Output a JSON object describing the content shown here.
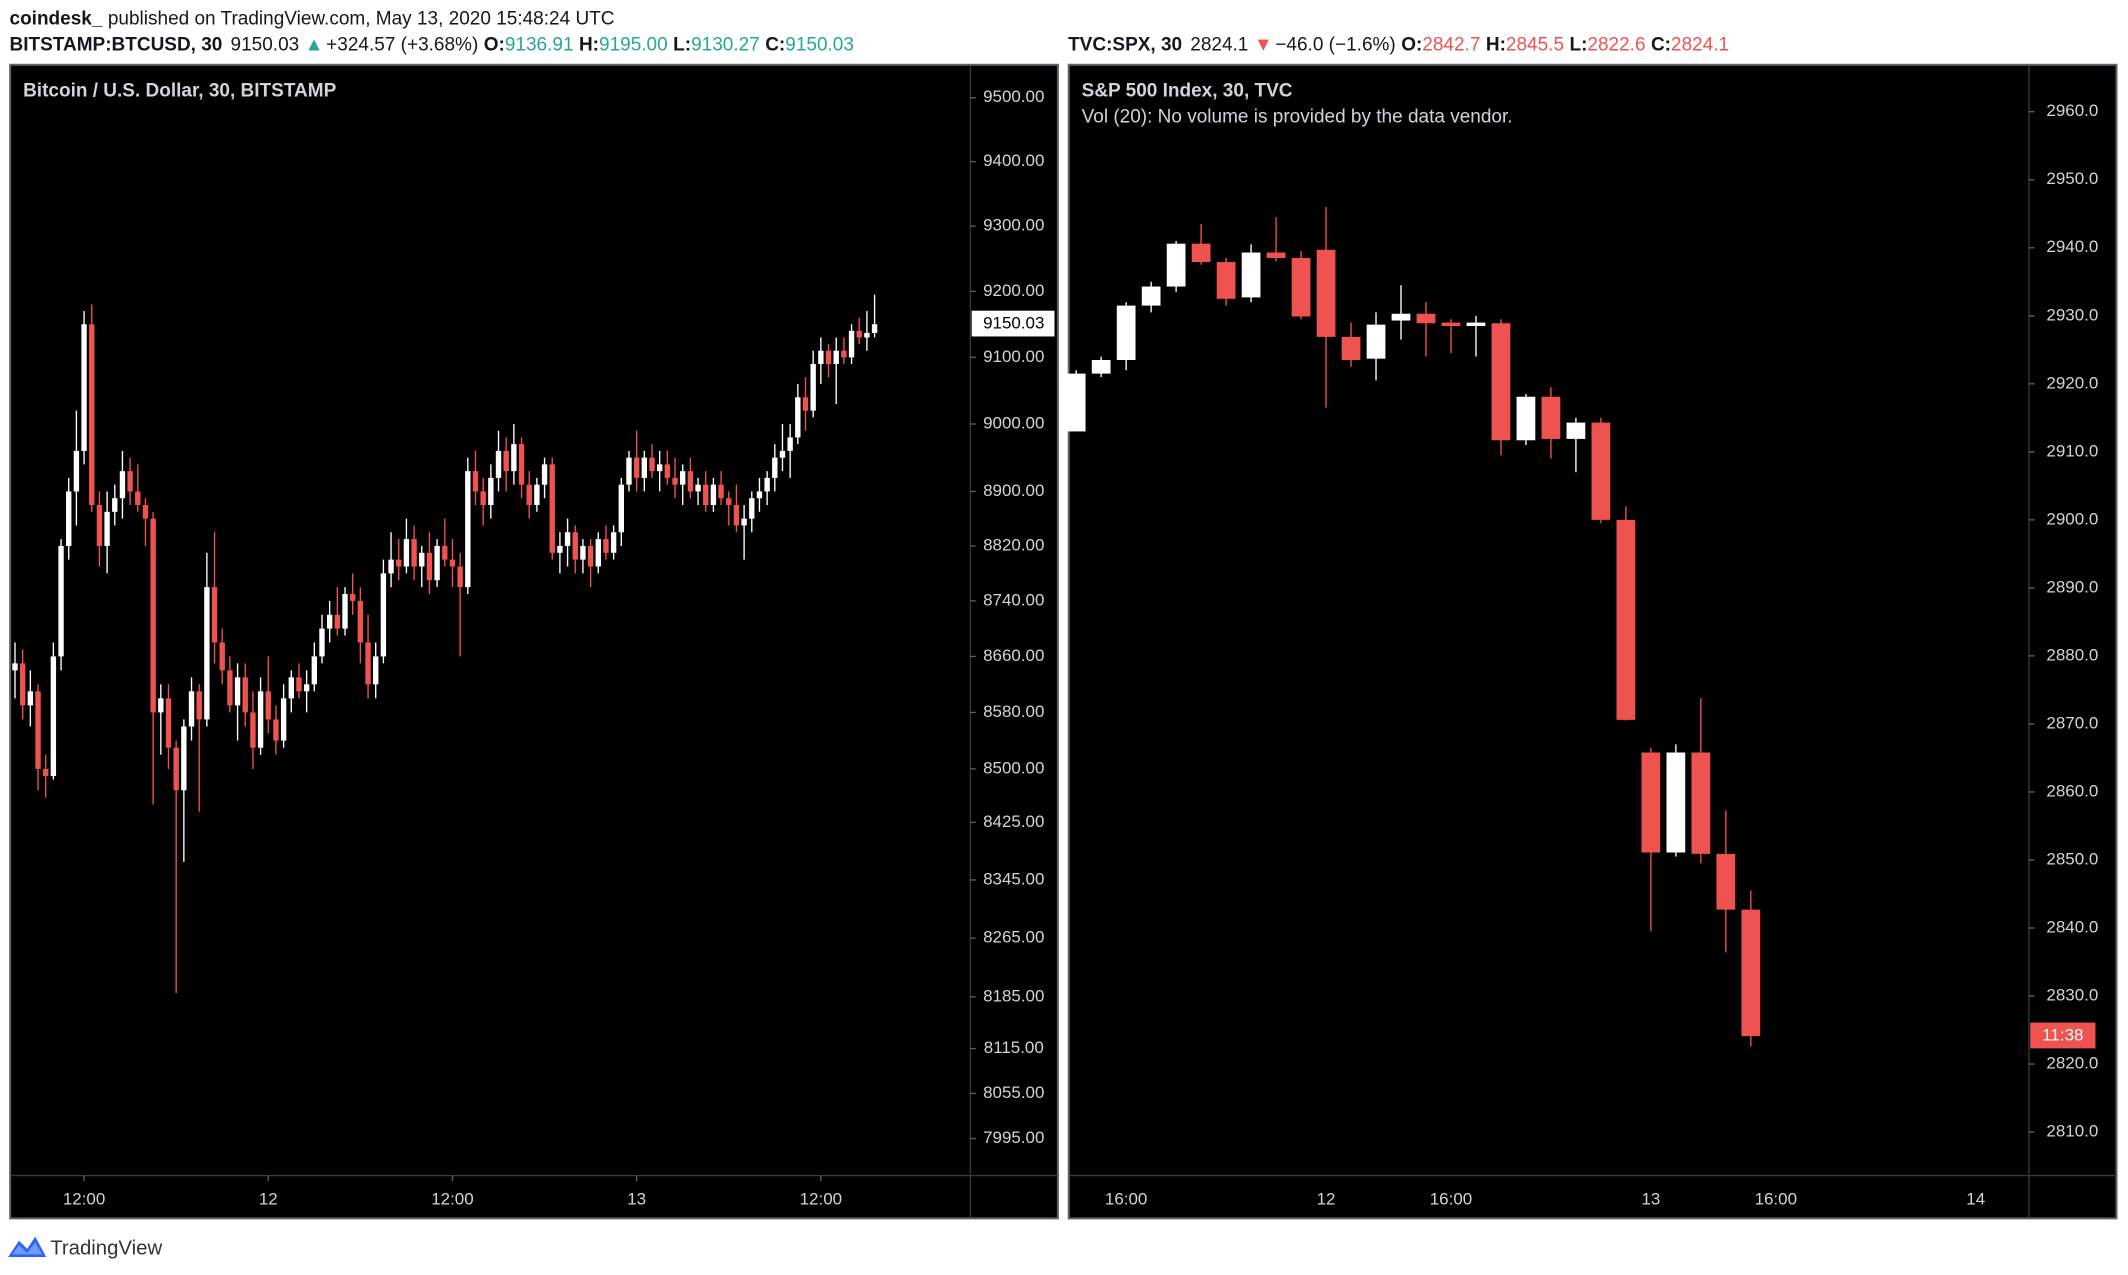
{
  "header": {
    "author": "coindesk_",
    "published": "published on TradingView.com, May 13, 2020 15:48:24 UTC"
  },
  "chart_data": [
    {
      "type": "candlestick",
      "symbol": "BITSTAMP:BTCUSD, 30",
      "title": "Bitcoin / U.S. Dollar, 30, BITSTAMP",
      "direction": "▲",
      "change": "+324.57 (+3.68%)",
      "ohlc_labels": [
        "O:",
        "H:",
        "L:",
        "C:"
      ],
      "last_bar_labels": [
        "9136.91",
        "9195.00",
        "9130.27",
        "9150.03"
      ],
      "up_color": "#ffffff",
      "down_color": "#ef5350",
      "header_color": "#26a69a",
      "log_scale": true,
      "x": [
        7.5,
        8,
        8.5,
        9,
        9.5,
        10,
        10.5,
        11,
        11.5,
        12,
        12.5,
        13,
        13.5,
        14,
        14.5,
        15,
        15.5,
        16,
        16.5,
        17,
        17.5,
        18,
        18.5,
        19,
        19.5,
        20,
        20.5,
        21,
        21.5,
        22,
        22.5,
        23,
        23.5,
        24,
        24.5,
        25,
        25.5,
        26,
        26.5,
        27,
        27.5,
        28,
        28.5,
        29,
        29.5,
        30,
        30.5,
        31,
        31.5,
        32,
        32.5,
        33,
        33.5,
        34,
        34.5,
        35,
        35.5,
        36,
        36.5,
        37,
        37.5,
        38,
        38.5,
        39,
        39.5,
        40,
        40.5,
        41,
        41.5,
        42,
        42.5,
        43,
        43.5,
        44,
        44.5,
        45,
        45.5,
        46,
        46.5,
        47,
        47.5,
        48,
        48.5,
        49,
        49.5,
        50,
        50.5,
        51,
        51.5,
        52,
        52.5,
        53,
        53.5,
        54,
        54.5,
        55,
        55.5,
        56,
        56.5,
        57,
        57.5,
        58,
        58.5,
        59,
        59.5,
        60,
        60.5,
        61,
        61.5,
        62,
        62.5,
        63,
        63.5
      ],
      "ohlc": [
        [
          8640,
          8680,
          8600,
          8650
        ],
        [
          8650,
          8670,
          8570,
          8590
        ],
        [
          8590,
          8640,
          8560,
          8610
        ],
        [
          8610,
          8620,
          8470,
          8500
        ],
        [
          8500,
          8520,
          8460,
          8490
        ],
        [
          8490,
          8680,
          8485,
          8660
        ],
        [
          8660,
          8830,
          8640,
          8820
        ],
        [
          8820,
          8920,
          8800,
          8900
        ],
        [
          8900,
          9020,
          8850,
          8960
        ],
        [
          8960,
          9170,
          8940,
          9150
        ],
        [
          9150,
          9180,
          8870,
          8880
        ],
        [
          8880,
          8900,
          8790,
          8820
        ],
        [
          8820,
          8900,
          8780,
          8870
        ],
        [
          8870,
          8910,
          8850,
          8890
        ],
        [
          8890,
          8960,
          8860,
          8930
        ],
        [
          8930,
          8950,
          8880,
          8900
        ],
        [
          8900,
          8940,
          8870,
          8880
        ],
        [
          8880,
          8890,
          8820,
          8860
        ],
        [
          8860,
          8870,
          8450,
          8580
        ],
        [
          8580,
          8620,
          8520,
          8600
        ],
        [
          8600,
          8620,
          8500,
          8530
        ],
        [
          8530,
          8540,
          8190,
          8470
        ],
        [
          8470,
          8570,
          8370,
          8560
        ],
        [
          8560,
          8630,
          8540,
          8610
        ],
        [
          8610,
          8620,
          8440,
          8570
        ],
        [
          8570,
          8810,
          8560,
          8760
        ],
        [
          8760,
          8840,
          8650,
          8680
        ],
        [
          8680,
          8700,
          8620,
          8640
        ],
        [
          8640,
          8660,
          8580,
          8590
        ],
        [
          8590,
          8650,
          8540,
          8630
        ],
        [
          8630,
          8650,
          8560,
          8580
        ],
        [
          8580,
          8610,
          8500,
          8530
        ],
        [
          8530,
          8630,
          8520,
          8610
        ],
        [
          8610,
          8660,
          8550,
          8570
        ],
        [
          8570,
          8590,
          8520,
          8540
        ],
        [
          8540,
          8620,
          8530,
          8600
        ],
        [
          8600,
          8640,
          8580,
          8630
        ],
        [
          8630,
          8650,
          8600,
          8610
        ],
        [
          8610,
          8640,
          8580,
          8620
        ],
        [
          8620,
          8680,
          8610,
          8660
        ],
        [
          8660,
          8720,
          8650,
          8700
        ],
        [
          8700,
          8740,
          8680,
          8720
        ],
        [
          8720,
          8760,
          8690,
          8700
        ],
        [
          8700,
          8760,
          8690,
          8750
        ],
        [
          8750,
          8780,
          8720,
          8740
        ],
        [
          8740,
          8760,
          8650,
          8680
        ],
        [
          8680,
          8720,
          8600,
          8620
        ],
        [
          8620,
          8680,
          8600,
          8660
        ],
        [
          8660,
          8800,
          8650,
          8780
        ],
        [
          8780,
          8840,
          8760,
          8800
        ],
        [
          8800,
          8830,
          8770,
          8790
        ],
        [
          8790,
          8860,
          8780,
          8830
        ],
        [
          8830,
          8850,
          8770,
          8790
        ],
        [
          8790,
          8820,
          8760,
          8810
        ],
        [
          8810,
          8840,
          8750,
          8770
        ],
        [
          8770,
          8830,
          8760,
          8820
        ],
        [
          8820,
          8860,
          8790,
          8800
        ],
        [
          8800,
          8830,
          8760,
          8790
        ],
        [
          8790,
          8810,
          8660,
          8760
        ],
        [
          8760,
          8950,
          8750,
          8930
        ],
        [
          8930,
          8960,
          8880,
          8900
        ],
        [
          8900,
          8920,
          8850,
          8880
        ],
        [
          8880,
          8940,
          8860,
          8920
        ],
        [
          8920,
          8990,
          8900,
          8960
        ],
        [
          8960,
          8980,
          8900,
          8930
        ],
        [
          8930,
          9000,
          8910,
          8970
        ],
        [
          8970,
          8980,
          8890,
          8910
        ],
        [
          8910,
          8930,
          8860,
          8880
        ],
        [
          8880,
          8920,
          8870,
          8910
        ],
        [
          8910,
          8950,
          8890,
          8940
        ],
        [
          8940,
          8950,
          8800,
          8810
        ],
        [
          8810,
          8840,
          8780,
          8820
        ],
        [
          8820,
          8860,
          8790,
          8840
        ],
        [
          8840,
          8850,
          8780,
          8800
        ],
        [
          8800,
          8830,
          8780,
          8820
        ],
        [
          8820,
          8830,
          8760,
          8790
        ],
        [
          8790,
          8840,
          8780,
          8830
        ],
        [
          8830,
          8850,
          8800,
          8810
        ],
        [
          8810,
          8850,
          8800,
          8840
        ],
        [
          8840,
          8920,
          8820,
          8910
        ],
        [
          8910,
          8960,
          8900,
          8950
        ],
        [
          8950,
          8990,
          8900,
          8920
        ],
        [
          8920,
          8960,
          8900,
          8950
        ],
        [
          8950,
          8970,
          8920,
          8930
        ],
        [
          8930,
          8960,
          8900,
          8940
        ],
        [
          8940,
          8960,
          8910,
          8920
        ],
        [
          8920,
          8950,
          8890,
          8910
        ],
        [
          8910,
          8940,
          8880,
          8930
        ],
        [
          8930,
          8950,
          8890,
          8900
        ],
        [
          8900,
          8920,
          8880,
          8910
        ],
        [
          8910,
          8930,
          8870,
          8880
        ],
        [
          8880,
          8920,
          8870,
          8910
        ],
        [
          8910,
          8930,
          8880,
          8890
        ],
        [
          8890,
          8900,
          8850,
          8880
        ],
        [
          8880,
          8910,
          8840,
          8850
        ],
        [
          8850,
          8880,
          8800,
          8860
        ],
        [
          8860,
          8900,
          8840,
          8890
        ],
        [
          8890,
          8920,
          8870,
          8900
        ],
        [
          8900,
          8930,
          8880,
          8920
        ],
        [
          8920,
          8970,
          8900,
          8950
        ],
        [
          8950,
          9000,
          8930,
          8960
        ],
        [
          8960,
          9000,
          8920,
          8980
        ],
        [
          8980,
          9060,
          8970,
          9040
        ],
        [
          9040,
          9070,
          8990,
          9020
        ],
        [
          9020,
          9110,
          9010,
          9090
        ],
        [
          9090,
          9130,
          9060,
          9110
        ],
        [
          9110,
          9120,
          9070,
          9090
        ],
        [
          9090,
          9130,
          9030,
          9110
        ],
        [
          9110,
          9130,
          9090,
          9100
        ],
        [
          9100,
          9150,
          9090,
          9140
        ],
        [
          9140,
          9160,
          9120,
          9130
        ],
        [
          9130,
          9170,
          9110,
          9137
        ],
        [
          9136.91,
          9195,
          9130.27,
          9150.03
        ]
      ],
      "xlim": [
        7.23,
        69.74
      ],
      "xticks": [
        {
          "value": 12,
          "label": "12:00"
        },
        {
          "value": 24,
          "label": "12"
        },
        {
          "value": 36,
          "label": "12:00"
        },
        {
          "value": 48,
          "label": "13"
        },
        {
          "value": 60,
          "label": "12:00"
        }
      ],
      "ylim": [
        7946,
        9551
      ],
      "yticks": [
        {
          "value": 9500,
          "label": "9500.00"
        },
        {
          "value": 9400,
          "label": "9400.00"
        },
        {
          "value": 9300,
          "label": "9300.00"
        },
        {
          "value": 9200,
          "label": "9200.00"
        },
        {
          "value": 9100,
          "label": "9100.00"
        },
        {
          "value": 9000,
          "label": "9000.00"
        },
        {
          "value": 8900,
          "label": "8900.00"
        },
        {
          "value": 8820,
          "label": "8820.00"
        },
        {
          "value": 8740,
          "label": "8740.00"
        },
        {
          "value": 8660,
          "label": "8660.00"
        },
        {
          "value": 8580,
          "label": "8580.00"
        },
        {
          "value": 8500,
          "label": "8500.00"
        },
        {
          "value": 8425,
          "label": "8425.00"
        },
        {
          "value": 8345,
          "label": "8345.00"
        },
        {
          "value": 8265,
          "label": "8265.00"
        },
        {
          "value": 8185,
          "label": "8185.00"
        },
        {
          "value": 8115,
          "label": "8115.00"
        },
        {
          "value": 8055,
          "label": "8055.00"
        },
        {
          "value": 7995,
          "label": "7995.00"
        }
      ]
    },
    {
      "type": "candlestick",
      "symbol": "TVC:SPX, 30",
      "title": "S&P 500 Index, 30, TVC",
      "subtitle": "Vol (20): No volume is provided by the data vendor.",
      "direction": "▼",
      "change": "−46.0 (−1.6%)",
      "ohlc_labels": [
        "O:",
        "H:",
        "L:",
        "C:"
      ],
      "countdown": "11:38",
      "up_color": "#ffffff",
      "down_color": "#ef5350",
      "header_color": "#ef5350",
      "log_scale": false,
      "categories": [
        null,
        null,
        "16:00",
        null,
        null,
        null,
        null,
        null,
        null,
        null,
        "12",
        null,
        null,
        null,
        null,
        "16:00",
        null,
        null,
        null,
        null,
        null,
        null,
        null,
        "13",
        null,
        null,
        null,
        null,
        "16:00",
        null,
        null,
        null,
        null,
        null,
        null,
        null,
        "14"
      ],
      "ohlc": [
        [
          2913,
          2922,
          2913,
          2921.5
        ],
        [
          2921.5,
          2924,
          2921,
          2923.5
        ],
        [
          2923.5,
          2932,
          2922,
          2931.5
        ],
        [
          2931.5,
          2935,
          2930.5,
          2934.3
        ],
        [
          2934.3,
          2941,
          2933.5,
          2940.6
        ],
        [
          2940.6,
          2943.5,
          2937.5,
          2937.9
        ],
        [
          2937.9,
          2938.5,
          2931.5,
          2932.5
        ],
        [
          2932.7,
          2940.5,
          2932,
          2939.3
        ],
        [
          2939.3,
          2944.5,
          2938,
          2938.5
        ],
        [
          2938.5,
          2939.5,
          2929.5,
          2929.9
        ],
        [
          2939.7,
          2946,
          2916.5,
          2926.9
        ],
        [
          2926.9,
          2929,
          2922.5,
          2923.5
        ],
        [
          2923.7,
          2930.5,
          2920.5,
          2928.7
        ],
        [
          2929.3,
          2934.5,
          2926.5,
          2930.3
        ],
        [
          2930.3,
          2932,
          2924,
          2928.9
        ],
        [
          2929,
          2929.5,
          2924.5,
          2928.5
        ],
        [
          2928.5,
          2930,
          2924,
          2929
        ],
        [
          2928.9,
          2929.5,
          2909.5,
          2911.7
        ],
        [
          2911.7,
          2918.5,
          2911,
          2918.1
        ],
        [
          2918.1,
          2919.5,
          2909,
          2911.9
        ],
        [
          2911.9,
          2915,
          2907,
          2914.3
        ],
        [
          2914.3,
          2915,
          2899.5,
          2900
        ],
        [
          2900,
          2902,
          2870.5,
          2870.6
        ],
        [
          2865.8,
          2866.5,
          2839.5,
          2851.1
        ],
        [
          2851.1,
          2867,
          2850.5,
          2865.8
        ],
        [
          2865.8,
          2873.8,
          2849.5,
          2850.9
        ],
        [
          2850.9,
          2857.3,
          2836.4,
          2842.7
        ],
        [
          2842.7,
          2845.5,
          2822.6,
          2824.1
        ],
        null,
        null,
        null,
        null,
        null,
        null,
        null,
        null,
        null
      ],
      "ylim": [
        2803.6,
        2966.8
      ],
      "yticks": [
        {
          "value": 2960,
          "label": "2960.0"
        },
        {
          "value": 2950,
          "label": "2950.0"
        },
        {
          "value": 2940,
          "label": "2940.0"
        },
        {
          "value": 2930,
          "label": "2930.0"
        },
        {
          "value": 2920,
          "label": "2920.0"
        },
        {
          "value": 2910,
          "label": "2910.0"
        },
        {
          "value": 2900,
          "label": "2900.0"
        },
        {
          "value": 2890,
          "label": "2890.0"
        },
        {
          "value": 2880,
          "label": "2880.0"
        },
        {
          "value": 2870,
          "label": "2870.0"
        },
        {
          "value": 2860,
          "label": "2860.0"
        },
        {
          "value": 2850,
          "label": "2850.0"
        },
        {
          "value": 2840,
          "label": "2840.0"
        },
        {
          "value": 2830,
          "label": "2830.0"
        },
        {
          "value": 2820,
          "label": "2820.0"
        },
        {
          "value": 2810,
          "label": "2810.0"
        }
      ]
    }
  ],
  "footer": {
    "brand": "TradingView"
  }
}
